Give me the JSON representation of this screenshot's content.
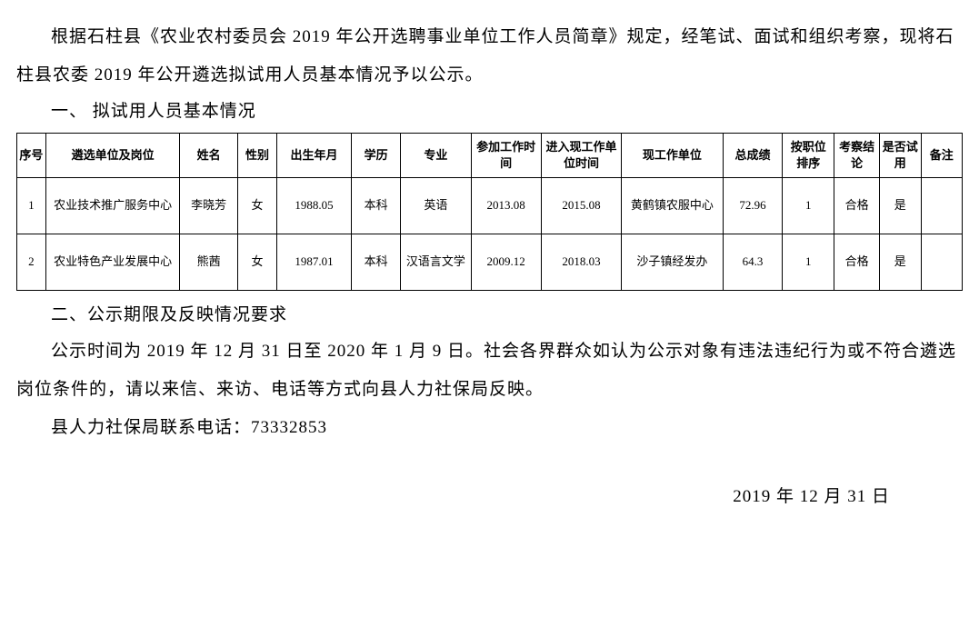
{
  "paragraphs": {
    "p1": "根据石柱县《农业农村委员会 2019 年公开选聘事业单位工作人员简章》规定，经笔试、面试和组织考察，现将石柱县农委 2019 年公开遴选拟试用人员基本情况予以公示。",
    "sec1": "一、 拟试用人员基本情况",
    "sec2": "二、公示期限及反映情况要求",
    "p2a": "公示时间为 2019 年 12 月 31 日至 2020 年 1 月 9 日。社会各界群众如认",
    "p2b": "为公示对象有违法违纪行为或不符合遴选岗位条件的，请以来信、来访、电话等方式向县人力社保局反映。",
    "p3": "县人力社保局联系电话：73332853",
    "date": "2019 年 12 月 31 日"
  },
  "table": {
    "headers": {
      "seq": "序号",
      "unit": "遴选单位及岗位",
      "name": "姓名",
      "gender": "性别",
      "birth": "出生年月",
      "edu": "学历",
      "major": "专业",
      "worktime": "参加工作时间",
      "enttime": "进入现工作单位时间",
      "currunit": "现工作单位",
      "score": "总成绩",
      "rank": "按职位排序",
      "eval": "考察结论",
      "trial": "是否试用",
      "remark": "备注"
    },
    "rows": [
      {
        "seq": "1",
        "unit": "农业技术推广服务中心",
        "name": "李晓芳",
        "gender": "女",
        "birth": "1988.05",
        "edu": "本科",
        "major": "英语",
        "worktime": "2013.08",
        "enttime": "2015.08",
        "currunit": "黄鹤镇农服中心",
        "score": "72.96",
        "rank": "1",
        "eval": "合格",
        "trial": "是",
        "remark": ""
      },
      {
        "seq": "2",
        "unit": "农业特色产业发展中心",
        "name": "熊茜",
        "gender": "女",
        "birth": "1987.01",
        "edu": "本科",
        "major": "汉语言文学",
        "worktime": "2009.12",
        "enttime": "2018.03",
        "currunit": "沙子镇经发办",
        "score": "64.3",
        "rank": "1",
        "eval": "合格",
        "trial": "是",
        "remark": ""
      }
    ]
  },
  "style": {
    "body_fontsize": 19,
    "table_fontsize": 13,
    "text_color": "#000000",
    "background_color": "#ffffff",
    "border_color": "#000000",
    "font_family": "SimSun, 宋体, serif"
  }
}
